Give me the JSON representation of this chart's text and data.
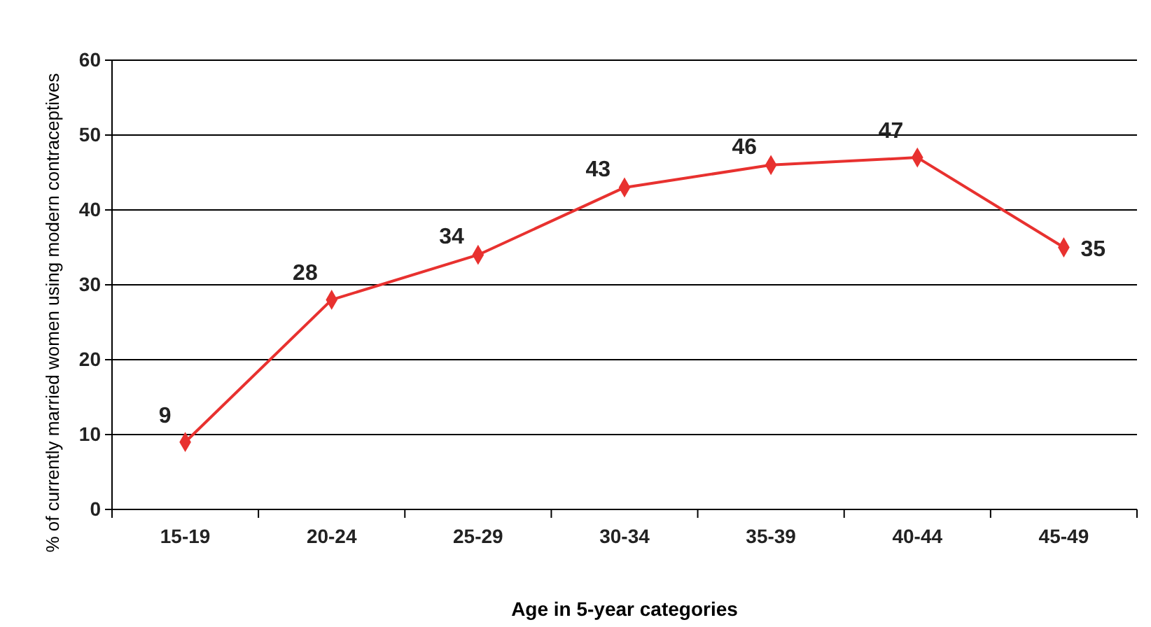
{
  "chart_data": {
    "type": "line",
    "xlabel": "Age in 5-year categories",
    "ylabel": "% of currently married women using modern contraceptives",
    "categories": [
      "15-19",
      "20-24",
      "25-29",
      "30-34",
      "35-39",
      "40-44",
      "45-49"
    ],
    "series": [
      {
        "color": "#e8312f",
        "values": [
          9,
          28,
          34,
          43,
          46,
          47,
          35
        ]
      }
    ],
    "ylim": [
      0,
      60
    ],
    "yticks": [
      0,
      10,
      20,
      30,
      40,
      50,
      60
    ],
    "grid": "y",
    "marker": "diamond",
    "line_style": "solid",
    "data_labels": true
  }
}
